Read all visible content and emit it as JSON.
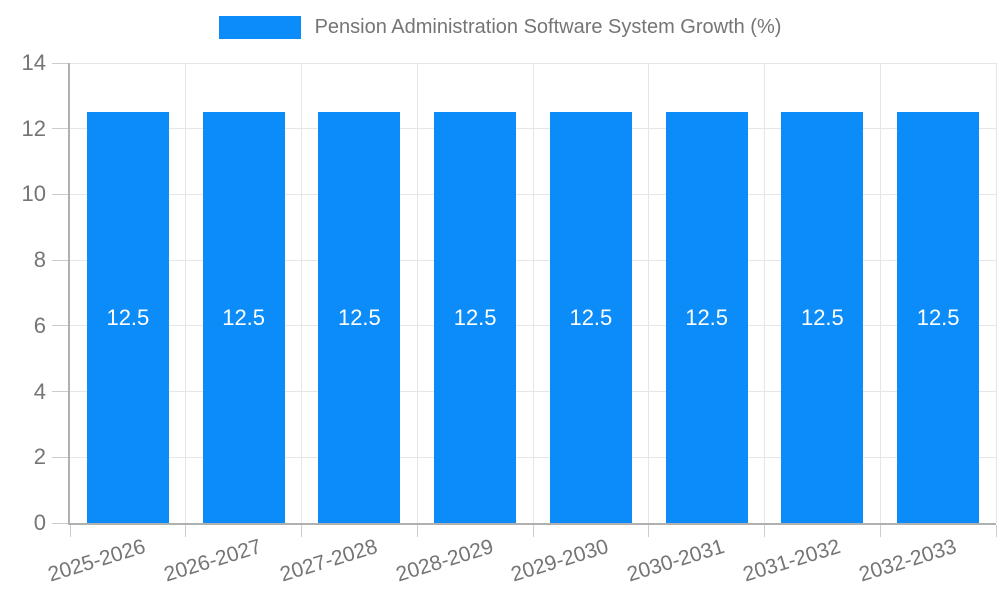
{
  "legend": {
    "label": "Pension Administration Software System Growth (%)"
  },
  "chart_data": {
    "type": "bar",
    "title": "Pension Administration Software System Growth (%)",
    "categories": [
      "2025-2026",
      "2026-2027",
      "2027-2028",
      "2028-2029",
      "2029-2030",
      "2030-2031",
      "2031-2032",
      "2032-2033"
    ],
    "series": [
      {
        "name": "Pension Administration Software System Growth (%)",
        "values": [
          12.5,
          12.5,
          12.5,
          12.5,
          12.5,
          12.5,
          12.5,
          12.5
        ]
      }
    ],
    "bar_labels": [
      "12.5",
      "12.5",
      "12.5",
      "12.5",
      "12.5",
      "12.5",
      "12.5",
      "12.5"
    ],
    "xlabel": "",
    "ylabel": "",
    "ylim": [
      0,
      14
    ],
    "yticks": [
      0,
      2,
      4,
      6,
      8,
      10,
      12,
      14
    ],
    "grid": true,
    "legend_position": "top",
    "colors": {
      "bar": "#0b8cf8",
      "grid": "#e6e6e6",
      "axis": "#b0b0b0",
      "tick": "#cccccc",
      "text": "#757575",
      "value_label": "#ffffff",
      "background": "#ffffff"
    }
  }
}
